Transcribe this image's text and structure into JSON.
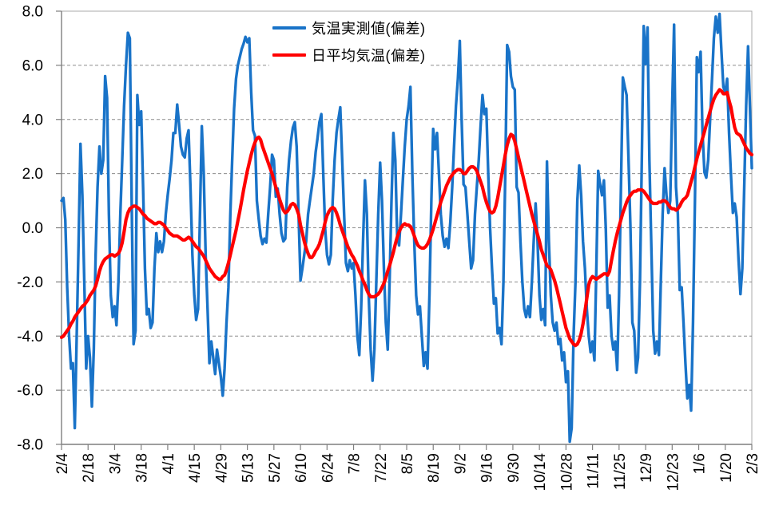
{
  "chart_data": {
    "type": "line",
    "title": "",
    "xlabel": "",
    "ylabel": "",
    "grid": "horizontal-dashed",
    "legend_position": "top-center",
    "x_axis": {
      "tick_labels": [
        "2/4",
        "2/18",
        "3/4",
        "3/18",
        "4/1",
        "4/15",
        "4/29",
        "5/13",
        "5/27",
        "6/10",
        "6/24",
        "7/8",
        "7/22",
        "8/5",
        "8/19",
        "9/2",
        "9/16",
        "9/30",
        "10/14",
        "10/28",
        "11/11",
        "11/25",
        "12/9",
        "12/23",
        "1/6",
        "1/20",
        "2/3"
      ],
      "tick_interval_days": 14,
      "total_days": 365
    },
    "y_axis": {
      "tick_labels": [
        "8.0",
        "6.0",
        "4.0",
        "2.0",
        "0.0",
        "-2.0",
        "-4.0",
        "-6.0",
        "-8.0"
      ],
      "min": -8.0,
      "max": 8.0,
      "step": 2.0
    },
    "series": [
      {
        "name": "気温実測値(偏差)",
        "color": "#1973C8",
        "stroke_width": 3.4,
        "values": [
          1.0,
          1.1,
          0.3,
          -2.2,
          -4.0,
          -5.2,
          -5.0,
          -7.4,
          -4.0,
          -0.5,
          3.1,
          1.2,
          -2.0,
          -5.2,
          -4.0,
          -4.8,
          -6.6,
          -4.5,
          -1.0,
          1.5,
          3.0,
          2.0,
          2.5,
          5.6,
          4.8,
          0.5,
          -2.5,
          -3.3,
          -2.9,
          -3.6,
          -2.0,
          0.5,
          2.5,
          4.5,
          6.0,
          7.2,
          7.0,
          1.0,
          -4.3,
          -3.8,
          4.9,
          3.8,
          4.3,
          1.5,
          -1.5,
          -3.2,
          -3.0,
          -3.7,
          -3.5,
          -1.5,
          -0.2,
          -0.9,
          -0.5,
          -0.9,
          -0.5,
          0.5,
          1.2,
          1.8,
          2.5,
          3.5,
          3.5,
          4.55,
          3.8,
          3.0,
          2.7,
          2.6,
          3.3,
          3.6,
          1.5,
          -1.0,
          -2.5,
          -3.4,
          -3.0,
          0.5,
          3.75,
          2.0,
          -1.0,
          -3.0,
          -5.0,
          -4.2,
          -4.8,
          -5.4,
          -4.5,
          -5.0,
          -5.5,
          -6.2,
          -5.2,
          -3.5,
          -2.2,
          0.5,
          2.5,
          4.4,
          5.5,
          6.0,
          6.3,
          6.6,
          6.8,
          7.05,
          6.85,
          7.0,
          5.0,
          3.6,
          3.4,
          1.0,
          0.3,
          -0.3,
          -0.6,
          -0.4,
          -0.55,
          0.5,
          1.5,
          2.7,
          2.5,
          1.15,
          1.45,
          0.5,
          -0.2,
          -0.5,
          -0.4,
          1.5,
          2.5,
          3.2,
          3.7,
          3.9,
          3.0,
          0.5,
          -1.95,
          -1.5,
          -1.0,
          -0.5,
          0.5,
          1.0,
          1.5,
          2.0,
          2.8,
          3.3,
          3.9,
          4.2,
          2.0,
          0.0,
          -1.0,
          -1.35,
          -1.0,
          1.0,
          2.5,
          3.5,
          4.0,
          4.45,
          2.5,
          0.5,
          -1.3,
          -1.6,
          -1.2,
          -1.5,
          -1.3,
          -2.5,
          -4.0,
          -4.7,
          -3.0,
          -0.5,
          1.75,
          0.5,
          -2.5,
          -4.5,
          -5.65,
          -4.5,
          -2.0,
          0.5,
          2.4,
          1.0,
          -1.5,
          -3.5,
          -4.5,
          -2.0,
          1.0,
          3.5,
          2.5,
          -0.3,
          -0.65,
          0.5,
          1.8,
          3.0,
          4.0,
          4.5,
          5.2,
          2.0,
          -0.5,
          -2.5,
          -3.2,
          -2.9,
          -4.0,
          -5.1,
          -4.6,
          -5.2,
          -2.5,
          1.0,
          3.65,
          2.9,
          3.5,
          2.0,
          0.5,
          -0.3,
          -0.7,
          -0.4,
          -0.75,
          0.2,
          1.5,
          3.0,
          4.5,
          5.5,
          6.9,
          4.0,
          1.6,
          1.5,
          0.5,
          -0.5,
          -1.5,
          -1.2,
          0.5,
          1.5,
          2.5,
          3.8,
          4.9,
          4.2,
          4.4,
          2.0,
          0.0,
          -1.5,
          -2.8,
          -2.6,
          -3.9,
          -3.7,
          -4.3,
          -2.0,
          2.0,
          6.75,
          6.5,
          5.6,
          5.2,
          5.1,
          1.5,
          1.3,
          -0.5,
          -2.0,
          -3.0,
          -3.3,
          -2.9,
          -3.3,
          -2.0,
          -0.5,
          0.9,
          -0.5,
          -2.5,
          -3.4,
          -3.0,
          -3.6,
          2.45,
          -0.5,
          -2.5,
          -3.5,
          -3.8,
          -3.5,
          -4.3,
          -4.1,
          -4.9,
          -4.6,
          -5.7,
          -5.3,
          -7.9,
          -7.4,
          -4.0,
          -2.0,
          1.0,
          2.3,
          1.2,
          -0.5,
          -1.5,
          -3.0,
          -4.0,
          -4.6,
          -4.2,
          -4.9,
          -1.5,
          2.1,
          1.6,
          1.2,
          1.75,
          0.0,
          -2.95,
          -2.5,
          -4.0,
          -4.5,
          -4.2,
          -5.25,
          -2.5,
          1.5,
          5.55,
          5.2,
          4.9,
          2.5,
          0.0,
          -3.5,
          -3.8,
          -5.35,
          -4.8,
          -2.0,
          2.5,
          7.45,
          6.05,
          7.4,
          2.5,
          -0.65,
          -3.8,
          -4.65,
          -4.2,
          -4.7,
          -2.0,
          0.5,
          2.2,
          1.2,
          0.55,
          1.0,
          4.5,
          7.5,
          1.5,
          0.5,
          -2.3,
          -2.2,
          -3.5,
          -5.0,
          -6.3,
          -5.8,
          -6.75,
          -3.5,
          1.0,
          6.3,
          5.75,
          6.5,
          3.5,
          2.05,
          1.85,
          2.5,
          4.0,
          5.5,
          7.0,
          7.8,
          7.2,
          7.9,
          6.5,
          5.2,
          5.0,
          5.5,
          3.5,
          1.95,
          0.55,
          0.9,
          0.4,
          -1.2,
          -2.45,
          -1.5,
          1.5,
          4.5,
          6.7,
          4.5,
          2.2
        ]
      },
      {
        "name": "日平均気温(偏差)",
        "color": "#FF0000",
        "stroke_width": 4.2,
        "values": [
          -4.05,
          -4.0,
          -3.9,
          -3.8,
          -3.7,
          -3.55,
          -3.45,
          -3.3,
          -3.2,
          -3.1,
          -3.0,
          -2.9,
          -2.85,
          -2.75,
          -2.65,
          -2.5,
          -2.4,
          -2.3,
          -2.15,
          -1.9,
          -1.6,
          -1.4,
          -1.25,
          -1.15,
          -1.1,
          -1.05,
          -1.0,
          -1.0,
          -1.05,
          -1.0,
          -0.95,
          -0.8,
          -0.55,
          -0.15,
          0.3,
          0.55,
          0.7,
          0.75,
          0.8,
          0.8,
          0.75,
          0.7,
          0.6,
          0.5,
          0.45,
          0.35,
          0.3,
          0.25,
          0.2,
          0.15,
          0.15,
          0.2,
          0.2,
          0.15,
          0.1,
          0.0,
          -0.1,
          -0.2,
          -0.25,
          -0.3,
          -0.3,
          -0.3,
          -0.35,
          -0.4,
          -0.45,
          -0.45,
          -0.4,
          -0.35,
          -0.4,
          -0.5,
          -0.6,
          -0.7,
          -0.75,
          -0.85,
          -0.95,
          -1.05,
          -1.2,
          -1.35,
          -1.5,
          -1.6,
          -1.7,
          -1.8,
          -1.85,
          -1.9,
          -1.9,
          -1.8,
          -1.75,
          -1.55,
          -1.3,
          -1.0,
          -0.7,
          -0.4,
          -0.1,
          0.25,
          0.6,
          1.0,
          1.4,
          1.75,
          2.1,
          2.4,
          2.7,
          2.95,
          3.15,
          3.3,
          3.35,
          3.25,
          3.0,
          2.8,
          2.6,
          2.4,
          2.2,
          2.0,
          1.75,
          1.5,
          1.3,
          1.05,
          0.85,
          0.65,
          0.55,
          0.6,
          0.7,
          0.85,
          0.9,
          0.85,
          0.7,
          0.5,
          0.1,
          -0.2,
          -0.5,
          -0.75,
          -0.95,
          -1.1,
          -1.1,
          -1.0,
          -0.85,
          -0.75,
          -0.6,
          -0.35,
          -0.1,
          0.2,
          0.45,
          0.6,
          0.7,
          0.75,
          0.7,
          0.55,
          0.35,
          0.1,
          -0.1,
          -0.3,
          -0.5,
          -0.7,
          -0.85,
          -1.0,
          -1.1,
          -1.25,
          -1.4,
          -1.6,
          -1.75,
          -1.95,
          -2.1,
          -2.3,
          -2.45,
          -2.55,
          -2.55,
          -2.55,
          -2.5,
          -2.45,
          -2.35,
          -2.2,
          -2.05,
          -1.85,
          -1.6,
          -1.4,
          -1.15,
          -0.9,
          -0.6,
          -0.35,
          -0.15,
          0.0,
          0.1,
          0.15,
          0.1,
          0.1,
          0.05,
          -0.1,
          -0.3,
          -0.5,
          -0.65,
          -0.72,
          -0.75,
          -0.75,
          -0.7,
          -0.6,
          -0.45,
          -0.25,
          -0.05,
          0.2,
          0.45,
          0.7,
          0.95,
          1.15,
          1.35,
          1.55,
          1.7,
          1.85,
          1.95,
          2.05,
          2.1,
          2.15,
          2.15,
          2.1,
          2.0,
          2.0,
          2.1,
          2.2,
          2.25,
          2.25,
          2.2,
          2.1,
          1.9,
          1.7,
          1.5,
          1.2,
          0.95,
          0.75,
          0.6,
          0.55,
          0.6,
          0.8,
          1.1,
          1.5,
          1.9,
          2.3,
          2.7,
          3.05,
          3.3,
          3.45,
          3.4,
          3.2,
          2.9,
          2.6,
          2.3,
          2.0,
          1.7,
          1.4,
          1.1,
          0.8,
          0.5,
          0.25,
          0.0,
          -0.25,
          -0.5,
          -0.8,
          -1.0,
          -1.2,
          -1.4,
          -1.45,
          -1.55,
          -1.75,
          -1.95,
          -2.2,
          -2.5,
          -2.8,
          -3.1,
          -3.4,
          -3.7,
          -3.9,
          -4.1,
          -4.2,
          -4.3,
          -4.35,
          -4.3,
          -4.15,
          -3.9,
          -3.55,
          -3.1,
          -2.6,
          -2.1,
          -1.9,
          -1.8,
          -1.85,
          -1.9,
          -1.85,
          -1.8,
          -1.75,
          -1.7,
          -1.7,
          -1.75,
          -1.6,
          -1.2,
          -0.85,
          -0.5,
          -0.2,
          0.05,
          0.3,
          0.55,
          0.75,
          0.95,
          1.1,
          1.2,
          1.3,
          1.35,
          1.35,
          1.4,
          1.4,
          1.4,
          1.35,
          1.25,
          1.15,
          1.05,
          0.95,
          0.9,
          0.9,
          0.9,
          0.95,
          0.95,
          1.0,
          1.0,
          0.95,
          0.85,
          0.75,
          0.7,
          0.7,
          0.65,
          0.7,
          0.8,
          0.95,
          1.05,
          1.1,
          1.2,
          1.45,
          1.7,
          1.95,
          2.25,
          2.55,
          2.8,
          3.05,
          3.3,
          3.55,
          3.8,
          4.05,
          4.3,
          4.55,
          4.75,
          4.9,
          5.0,
          5.1,
          5.05,
          4.95,
          4.95,
          5.0,
          4.7,
          4.45,
          4.05,
          3.7,
          3.5,
          3.45,
          3.4,
          3.25,
          3.1,
          2.95,
          2.85,
          2.75,
          2.7
        ]
      }
    ]
  },
  "style": {
    "gridline_color": "#8C8C8C",
    "border_color": "#ABABAB",
    "axis_color": "#7F7F7F",
    "tick_color": "#7F7F7F",
    "label_color": "#000000",
    "background": "#FFFFFF"
  }
}
